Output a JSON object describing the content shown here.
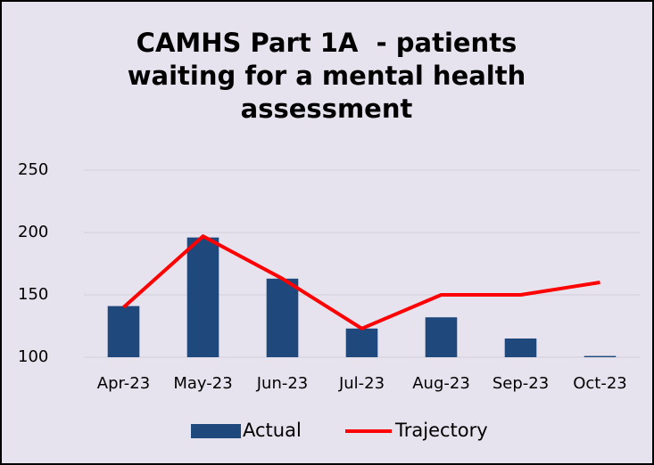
{
  "chart_data": {
    "type": "bar",
    "title": "CAMHS Part 1A  - patients waiting for a mental health assessment",
    "categories": [
      "Apr-23",
      "May-23",
      "Jun-23",
      "Jul-23",
      "Aug-23",
      "Sep-23",
      "Oct-23"
    ],
    "series": [
      {
        "name": "Actual",
        "type": "bar",
        "color": "#1f497d",
        "values": [
          141,
          196,
          163,
          123,
          132,
          115,
          101
        ]
      },
      {
        "name": "Trajectory",
        "type": "line",
        "color": "#ff0000",
        "values": [
          140,
          197,
          163,
          123,
          150,
          150,
          160
        ]
      }
    ],
    "ylim": [
      100,
      250
    ],
    "yticks": [
      100,
      150,
      200,
      250
    ],
    "grid": true,
    "legend": "bottom"
  }
}
